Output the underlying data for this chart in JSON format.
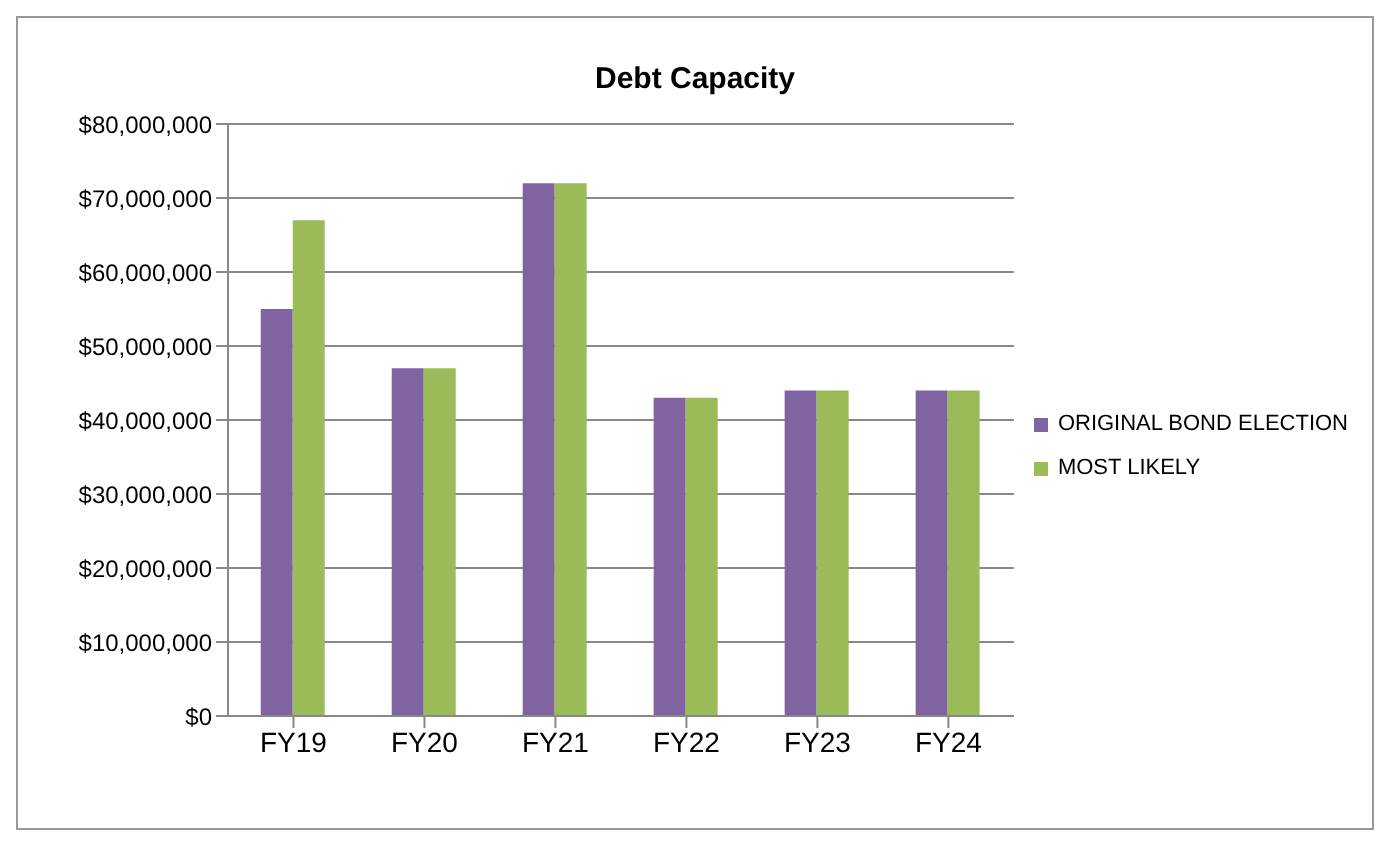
{
  "chart_data": {
    "type": "bar",
    "title": "Debt Capacity",
    "categories": [
      "FY19",
      "FY20",
      "FY21",
      "FY22",
      "FY23",
      "FY24"
    ],
    "series": [
      {
        "name": "ORIGINAL BOND ELECTION",
        "color": "#8064a2",
        "values": [
          55000000,
          47000000,
          72000000,
          43000000,
          44000000,
          44000000
        ]
      },
      {
        "name": "MOST LIKELY",
        "color": "#9bbb59",
        "values": [
          67000000,
          47000000,
          72000000,
          43000000,
          44000000,
          44000000
        ]
      }
    ],
    "ylim": [
      0,
      80000000
    ],
    "yticks": [
      {
        "value": 0,
        "label": "$0"
      },
      {
        "value": 10000000,
        "label": "$10,000,000"
      },
      {
        "value": 20000000,
        "label": "$20,000,000"
      },
      {
        "value": 30000000,
        "label": "$30,000,000"
      },
      {
        "value": 40000000,
        "label": "$40,000,000"
      },
      {
        "value": 50000000,
        "label": "$50,000,000"
      },
      {
        "value": 60000000,
        "label": "$60,000,000"
      },
      {
        "value": 70000000,
        "label": "$70,000,000"
      },
      {
        "value": 80000000,
        "label": "$80,000,000"
      }
    ],
    "grid": "y",
    "legend": "right"
  }
}
